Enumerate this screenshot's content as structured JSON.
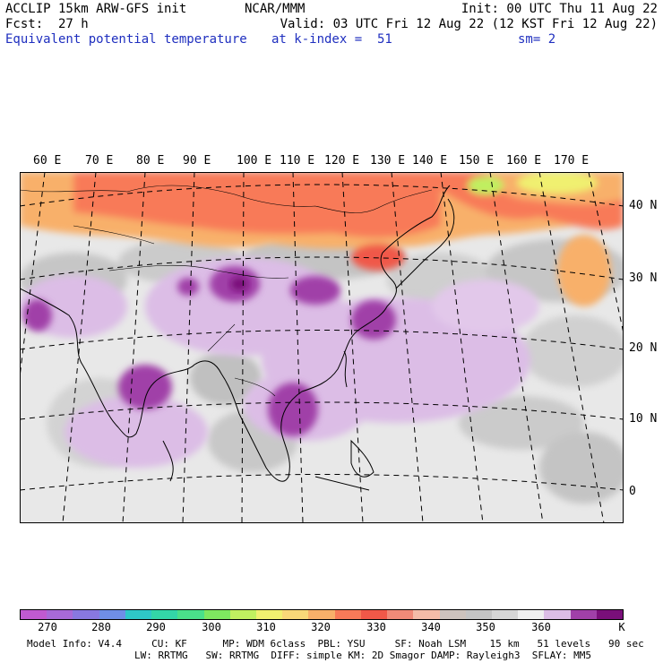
{
  "header": {
    "model_line": "ACCLIP 15km ARW-GFS init",
    "org": "NCAR/MMM",
    "init": "Init: 00 UTC Thu 11 Aug 22",
    "fcst": "Fcst:  27 h",
    "valid": "Valid: 03 UTC Fri 12 Aug 22 (12 KST Fri 12 Aug 22)",
    "field": "Equivalent potential temperature",
    "level": "at k-index =  51",
    "smooth": "sm= 2"
  },
  "map": {
    "lon_labels": [
      "60 E",
      "70 E",
      "80 E",
      "90 E",
      "100 E",
      "110 E",
      "120 E",
      "130 E",
      "140 E",
      "150 E",
      "160 E",
      "170 E"
    ],
    "lat_labels": [
      "40 N",
      "30 N",
      "20 N",
      "10 N",
      "0"
    ],
    "description_colors": {
      "land_outline": "#000000",
      "gridline": "#000000"
    }
  },
  "colorbar": {
    "colors": [
      "#c05ad0",
      "#a86ad8",
      "#8878e0",
      "#6f8ee6",
      "#2ec8c8",
      "#33d6a8",
      "#4ae08a",
      "#7ee860",
      "#c0f060",
      "#f0f070",
      "#f8d878",
      "#f8b06a",
      "#f87a58",
      "#f05848",
      "#f08a78",
      "#f4bca8",
      "#cdc3bd",
      "#c4c4c4",
      "#d6d6d6",
      "#efefef",
      "#dcbde6",
      "#a040a8",
      "#7a0f7a"
    ],
    "ticks": [
      "270",
      "280",
      "290",
      "300",
      "310",
      "320",
      "330",
      "340",
      "350",
      "360",
      "K"
    ]
  },
  "info": {
    "line1": "Model Info: V4.4     CU: KF      MP: WDM 6class  PBL: YSU     SF: Noah LSM    15 km   51 levels   90 sec",
    "line2": "LW: RRTMG   SW: RRTMG  DIFF: simple KM: 2D Smagor DAMP: Rayleigh3  SFLAY: MM5"
  }
}
